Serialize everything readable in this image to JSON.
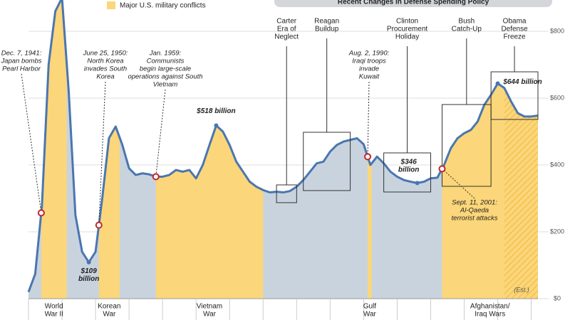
{
  "chart_data": {
    "type": "area",
    "legend": "Major U.S. military conflicts",
    "subtitle": "Recent Changes in Defense Spending Policy",
    "note": "(Est.)",
    "x": [
      1940,
      1941,
      1942,
      1943,
      1944,
      1945,
      1946,
      1947,
      1948,
      1949,
      1950,
      1951,
      1952,
      1953,
      1954,
      1955,
      1956,
      1957,
      1958,
      1959,
      1960,
      1961,
      1962,
      1963,
      1964,
      1965,
      1966,
      1967,
      1968,
      1969,
      1970,
      1971,
      1972,
      1973,
      1974,
      1975,
      1976,
      1977,
      1978,
      1979,
      1980,
      1981,
      1982,
      1983,
      1984,
      1985,
      1986,
      1987,
      1988,
      1989,
      1990,
      1991,
      1992,
      1993,
      1994,
      1995,
      1996,
      1997,
      1998,
      1999,
      2000,
      2001,
      2002,
      2003,
      2004,
      2005,
      2006,
      2007,
      2008,
      2009,
      2010,
      2011,
      2012,
      2013,
      2014,
      2015,
      2016
    ],
    "series": [
      {
        "color": "#4a76b0",
        "values": [
          20,
          74,
          277,
          700,
          860,
          900,
          620,
          250,
          140,
          109,
          140,
          300,
          480,
          515,
          460,
          390,
          370,
          375,
          372,
          365,
          365,
          370,
          385,
          380,
          385,
          360,
          400,
          460,
          518,
          500,
          460,
          410,
          380,
          350,
          335,
          325,
          318,
          320,
          318,
          322,
          335,
          355,
          380,
          405,
          410,
          440,
          460,
          470,
          475,
          480,
          462,
          400,
          425,
          405,
          380,
          365,
          355,
          350,
          346,
          350,
          360,
          362,
          400,
          450,
          480,
          495,
          505,
          530,
          580,
          610,
          644,
          630,
          590,
          555,
          545,
          545,
          548
        ],
        "value_labels": [
          null,
          null,
          null,
          null,
          null,
          null,
          null,
          null,
          null,
          "$109 billion",
          null,
          null,
          null,
          null,
          null,
          null,
          null,
          null,
          null,
          null,
          null,
          null,
          null,
          null,
          null,
          null,
          null,
          null,
          "$518 billion",
          null,
          null,
          null,
          null,
          null,
          null,
          null,
          null,
          null,
          null,
          null,
          null,
          null,
          null,
          null,
          null,
          null,
          null,
          null,
          null,
          null,
          null,
          null,
          null,
          null,
          null,
          null,
          null,
          null,
          "$346 billion",
          null,
          null,
          null,
          null,
          null,
          null,
          null,
          null,
          null,
          null,
          null,
          "$644 billion",
          null,
          null,
          null,
          null,
          null,
          null
        ]
      }
    ],
    "area_color": "#c9d3de",
    "conflict_color": "#fbd67a",
    "conflicts": [
      {
        "label": [
          "World",
          "War II"
        ],
        "start": 1941.9,
        "end": 1945.7
      },
      {
        "label": [
          "Korean",
          "War"
        ],
        "start": 1950.5,
        "end": 1953.6
      },
      {
        "label": [
          "Vietnam",
          "War"
        ],
        "start": 1959,
        "end": 1975
      },
      {
        "label": [
          "Gulf",
          "War"
        ],
        "start": 1990.6,
        "end": 1991.2
      },
      {
        "label": [
          "Afghanistan/",
          "Iraq Wars"
        ],
        "start": 2001.7,
        "end": 2016
      }
    ],
    "estimate_start": 2011,
    "events": [
      {
        "date": "Dec. 7, 1941:",
        "text": [
          "Japan bombs",
          "Pearl Harbor"
        ],
        "year": 1941.9
      },
      {
        "date": "June 25, 1950:",
        "text": [
          "North Korea",
          "invades South",
          "Korea"
        ],
        "year": 1950.5
      },
      {
        "date": "Jan. 1959:",
        "text": [
          "Communists",
          "begin large-scale",
          "operations against South",
          "Vietnam"
        ],
        "year": 1959
      },
      {
        "date": "Aug. 2, 1990:",
        "text": [
          "Iraqi troops",
          "invade",
          "Kuwait"
        ],
        "year": 1990.6
      },
      {
        "date": "Sept. 11, 2001:",
        "text": [
          "Al-Qaeda",
          "terrorist attacks"
        ],
        "year": 2001.7
      }
    ],
    "policies": [
      {
        "label": [
          "Carter",
          "Era of",
          "Neglect"
        ],
        "start": 1977,
        "end": 1980
      },
      {
        "label": [
          "Reagan",
          "Buildup"
        ],
        "start": 1981,
        "end": 1988
      },
      {
        "label": [
          "Clinton",
          "Procurement",
          "Holiday"
        ],
        "start": 1993,
        "end": 2000
      },
      {
        "label": [
          "Bush",
          "Catch-Up"
        ],
        "start": 2001.7,
        "end": 2009
      },
      {
        "label": [
          "Obama",
          "Defense",
          "Freeze"
        ],
        "start": 2009,
        "end": 2016
      }
    ],
    "xlim": [
      1940,
      2016
    ],
    "xticks": [
      1940,
      1945,
      1950,
      1955,
      1960,
      1965,
      1970,
      1975,
      1980,
      1985,
      1990,
      1995,
      2000,
      2005,
      2010,
      2015
    ],
    "ylim": [
      0,
      800
    ],
    "yticks": [
      {
        "value": 0,
        "label": "$0"
      },
      {
        "value": 200,
        "label": "$200"
      },
      {
        "value": 400,
        "label": "$400"
      },
      {
        "value": 600,
        "label": "$600"
      },
      {
        "value": 800,
        "label": "$800"
      }
    ],
    "grid": true
  }
}
